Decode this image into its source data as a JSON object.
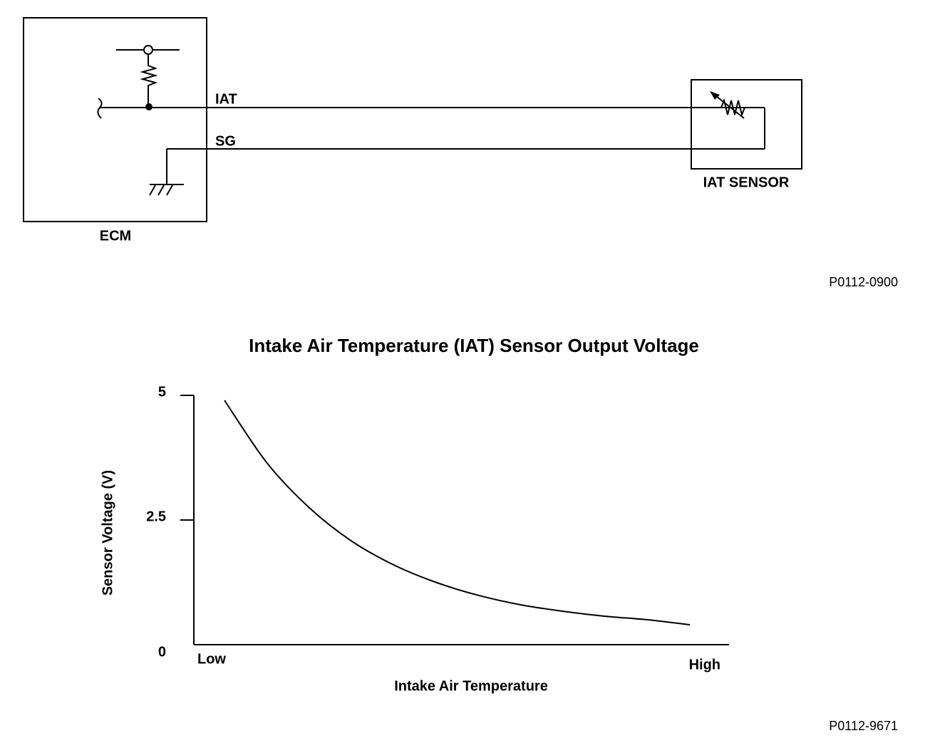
{
  "diagram": {
    "ecm_label": "ECM",
    "wires": [
      "IAT",
      "SG"
    ],
    "sensor_label": "IAT SENSOR",
    "figure_id": "P0112-0900"
  },
  "chart_data": {
    "type": "line",
    "title": "Intake Air Temperature (IAT) Sensor Output Voltage",
    "ylabel": "Sensor Voltage (V)",
    "xlabel": "Intake Air Temperature",
    "xlabels": [
      "Low",
      "High"
    ],
    "values": [
      4.9,
      3.65,
      2.75,
      2.08,
      1.6,
      1.25,
      0.99,
      0.8,
      0.67,
      0.57,
      0.5,
      0.4
    ],
    "color": "#000000",
    "ylim": [
      0,
      5
    ],
    "yticks": [
      0,
      2.5,
      5
    ],
    "figure_id": "P0112-9671"
  }
}
